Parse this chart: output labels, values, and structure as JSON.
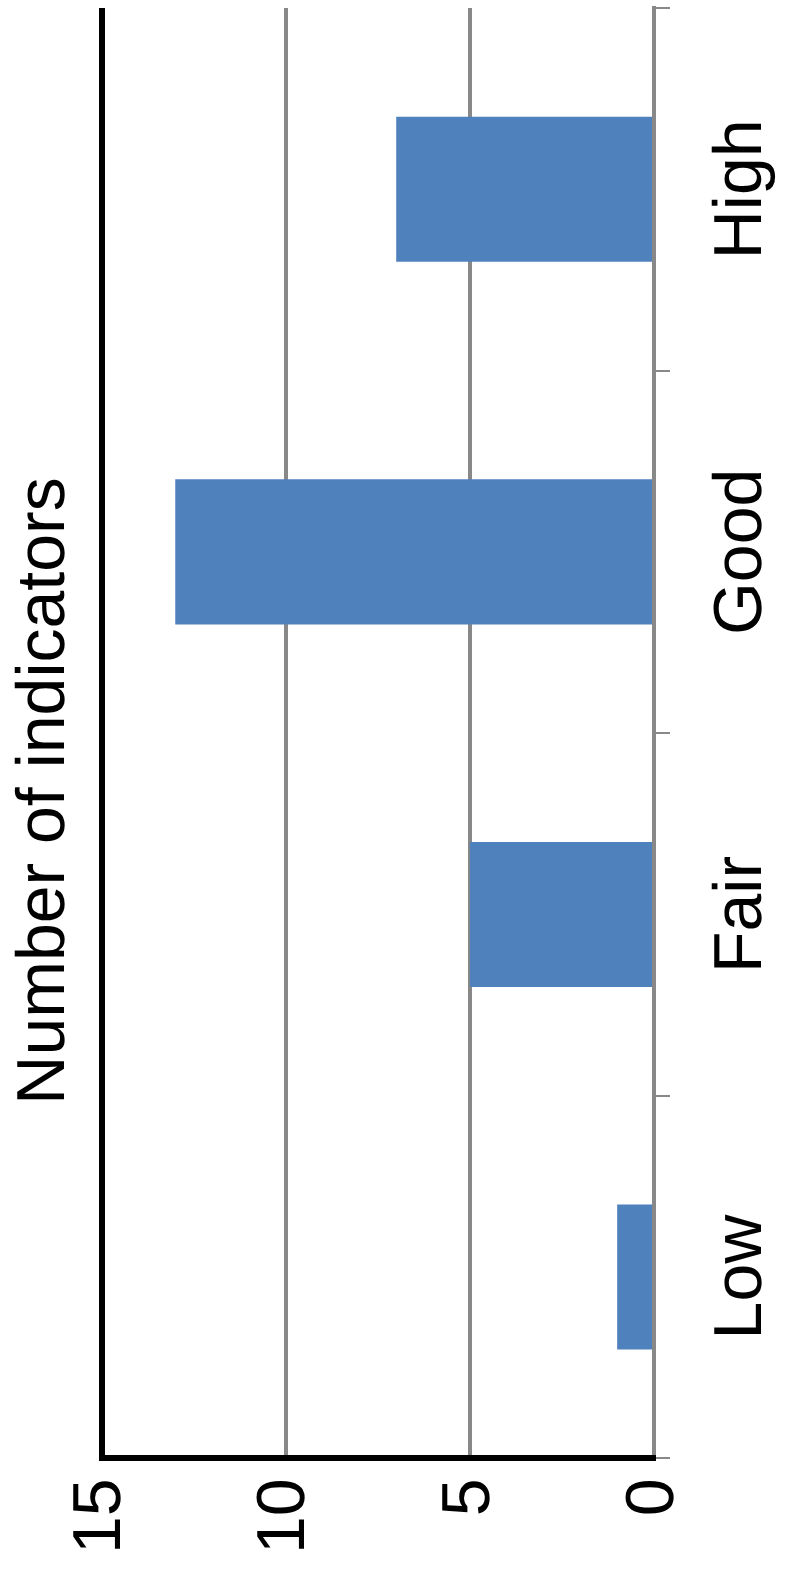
{
  "chart_data": {
    "type": "bar",
    "orientation": "horizontal",
    "title": "Number of indicators",
    "categories": [
      "High",
      "Good",
      "Fair",
      "Low"
    ],
    "values": [
      7,
      13,
      5,
      1
    ],
    "color": "#4f81bd",
    "xlim": [
      15,
      0
    ],
    "xticks": [
      0,
      5,
      10,
      15
    ],
    "grid": "x",
    "legend": false
  }
}
